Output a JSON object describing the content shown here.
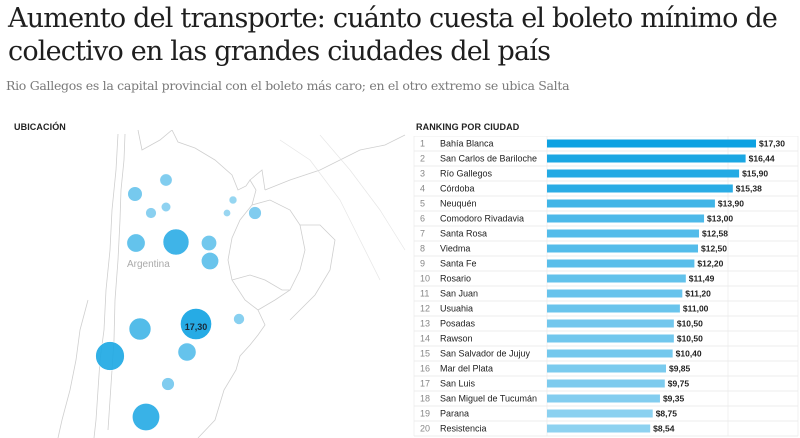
{
  "header": {
    "title": "Aumento del transporte: cuánto cuesta el boleto mínimo de colectivo en las grandes ciudades del país",
    "subtitle": "Rio Gallegos es la capital provincial con el boleto más caro; en el otro extremo se ubica Salta"
  },
  "map": {
    "label": "UBICACIÓN",
    "country_label": "Argentina",
    "highlight_value": "17,30"
  },
  "colors": {
    "bar_high": "#0ea2e2",
    "bar_mid": "#3db4e8",
    "bar_low": "#8fd2f0",
    "grid": "#e6e6e6"
  },
  "chart_data": {
    "type": "bar",
    "orientation": "horizontal",
    "title": "RANKING POR CIUDAD",
    "xlabel": "",
    "ylabel": "",
    "xlim": [
      0,
      20
    ],
    "value_prefix": "$",
    "grid": true,
    "categories": [
      "Bahía Blanca",
      "San Carlos de Bariloche",
      "Río Gallegos",
      "Córdoba",
      "Neuquén",
      "Comodoro Rivadavia",
      "Santa Rosa",
      "Viedma",
      "Santa Fe",
      "Rosario",
      "San Juan",
      "Usuahia",
      "Posadas",
      "Rawson",
      "San Salvador de Jujuy",
      "Mar del Plata",
      "San Luis",
      "San Miguel de Tucumán",
      "Parana",
      "Resistencia"
    ],
    "ranks": [
      1,
      2,
      3,
      4,
      5,
      6,
      7,
      8,
      9,
      10,
      11,
      12,
      13,
      14,
      15,
      16,
      17,
      18,
      19,
      20
    ],
    "values": [
      17.3,
      16.44,
      15.9,
      15.38,
      13.9,
      13.0,
      12.58,
      12.5,
      12.2,
      11.49,
      11.2,
      11.0,
      10.5,
      10.5,
      10.4,
      9.85,
      9.75,
      9.35,
      8.75,
      8.54
    ],
    "labels": [
      "$17,30",
      "$16,44",
      "$15,90",
      "$15,38",
      "$13,90",
      "$13,00",
      "$12,58",
      "$12,50",
      "$12,20",
      "$11,49",
      "$11,20",
      "$11,00",
      "$10,50",
      "$10,50",
      "$10,40",
      "$9,85",
      "$9,75",
      "$9,35",
      "$8,75",
      "$8,54"
    ]
  }
}
